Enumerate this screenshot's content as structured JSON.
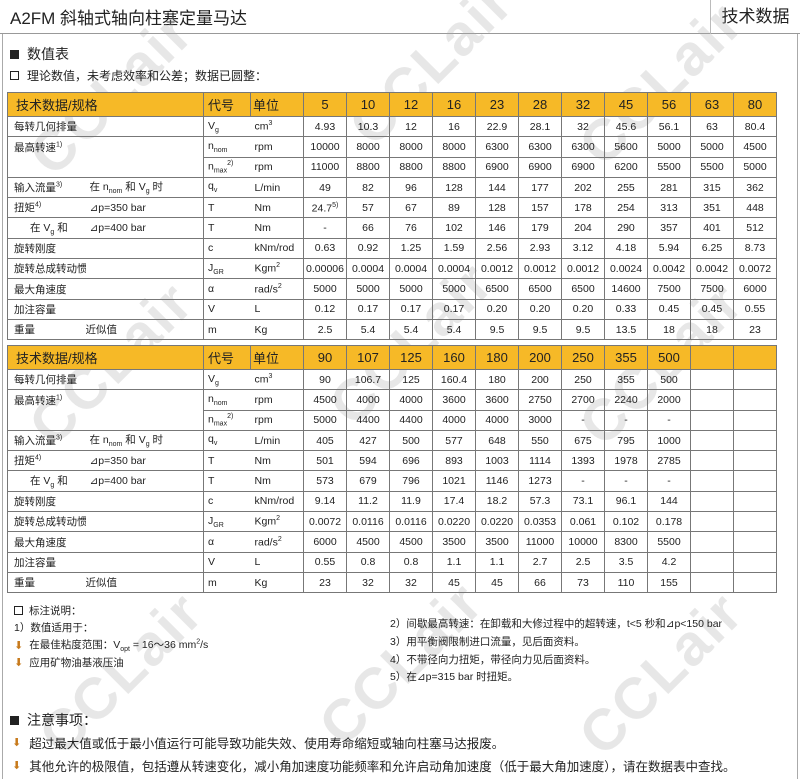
{
  "header": {
    "title": "A2FM 斜轴式轴向柱塞定量马达",
    "right": "技术数据"
  },
  "watermark": "CCLair",
  "section_title": "数值表",
  "subtitle": "理论数值，未考虑效率和公差；数据已圆整：",
  "colors": {
    "header_bg": "#f6b927",
    "arrow": "#c77a1c"
  },
  "table_headers": {
    "label": "技术数据/规格",
    "code": "代号",
    "unit": "单位"
  },
  "row_defs": [
    {
      "label": "每转几何排量",
      "code": "V",
      "code_sub": "g",
      "unit": "cm",
      "unit_sup": "3"
    },
    {
      "label": "最高转速",
      "label_sup": "1)",
      "code": "n",
      "code_sub": "nom",
      "unit": "rpm"
    },
    {
      "code": "n",
      "code_sub": "max",
      "code_sup": "2)",
      "unit": "rpm"
    },
    {
      "label": "输入流量",
      "label_sup": "3)",
      "sub_parts": [
        "在 n",
        "nom",
        " 和 V",
        "g",
        " 时"
      ],
      "code": "q",
      "code_sub": "v",
      "unit": "L/min"
    },
    {
      "label": "扭矩",
      "label_sup": "4)",
      "sublabel": "⊿p=350 bar",
      "code": "T",
      "unit": "Nm"
    },
    {
      "label_parts": [
        "在 V",
        "g",
        " 和"
      ],
      "sublabel": "⊿p=400 bar",
      "code": "T",
      "unit": "Nm"
    },
    {
      "label": "旋转刚度",
      "code": "c",
      "unit": "kNm/rod"
    },
    {
      "label": "旋转总成转动惯量",
      "code": "J",
      "code_sub": "GR",
      "unit": "Kgm",
      "unit_sup": "2"
    },
    {
      "label": "最大角速度",
      "code": "α",
      "unit": "rad/s",
      "unit_sup": "2"
    },
    {
      "label": "加注容量",
      "code": "V",
      "unit": "L"
    },
    {
      "label": "重量",
      "sublabel": "近似值",
      "code": "m",
      "unit": "Kg"
    }
  ],
  "tables": [
    {
      "sizes": [
        "5",
        "10",
        "12",
        "16",
        "23",
        "28",
        "32",
        "45",
        "56",
        "63",
        "80"
      ],
      "rows": [
        [
          "4.93",
          "10.3",
          "12",
          "16",
          "22.9",
          "28.1",
          "32",
          "45.6",
          "56.1",
          "63",
          "80.4"
        ],
        [
          "10000",
          "8000",
          "8000",
          "8000",
          "6300",
          "6300",
          "6300",
          "5600",
          "5000",
          "5000",
          "4500"
        ],
        [
          "11000",
          "8800",
          "8800",
          "8800",
          "6900",
          "6900",
          "6900",
          "6200",
          "5500",
          "5500",
          "5000"
        ],
        [
          "49",
          "82",
          "96",
          "128",
          "144",
          "177",
          "202",
          "255",
          "281",
          "315",
          "362"
        ],
        [
          "24.7",
          "57",
          "67",
          "89",
          "128",
          "157",
          "178",
          "254",
          "313",
          "351",
          "448"
        ],
        [
          "-",
          "66",
          "76",
          "102",
          "146",
          "179",
          "204",
          "290",
          "357",
          "401",
          "512"
        ],
        [
          "0.63",
          "0.92",
          "1.25",
          "1.59",
          "2.56",
          "2.93",
          "3.12",
          "4.18",
          "5.94",
          "6.25",
          "8.73"
        ],
        [
          "0.00006",
          "0.0004",
          "0.0004",
          "0.0004",
          "0.0012",
          "0.0012",
          "0.0012",
          "0.0024",
          "0.0042",
          "0.0042",
          "0.0072"
        ],
        [
          "5000",
          "5000",
          "5000",
          "5000",
          "6500",
          "6500",
          "6500",
          "14600",
          "7500",
          "7500",
          "6000"
        ],
        [
          "0.12",
          "0.17",
          "0.17",
          "0.17",
          "0.20",
          "0.20",
          "0.20",
          "0.33",
          "0.45",
          "0.45",
          "0.55"
        ],
        [
          "2.5",
          "5.4",
          "5.4",
          "5.4",
          "9.5",
          "9.5",
          "9.5",
          "13.5",
          "18",
          "18",
          "23"
        ]
      ],
      "value_note": {
        "row": 4,
        "col": 0,
        "text": "5)"
      }
    },
    {
      "sizes": [
        "90",
        "107",
        "125",
        "160",
        "180",
        "200",
        "250",
        "355",
        "500",
        "",
        ""
      ],
      "rows": [
        [
          "90",
          "106.7",
          "125",
          "160.4",
          "180",
          "200",
          "250",
          "355",
          "500",
          "",
          ""
        ],
        [
          "4500",
          "4000",
          "4000",
          "3600",
          "3600",
          "2750",
          "2700",
          "2240",
          "2000",
          "",
          ""
        ],
        [
          "5000",
          "4400",
          "4400",
          "4000",
          "4000",
          "3000",
          "-",
          "-",
          "-",
          "",
          ""
        ],
        [
          "405",
          "427",
          "500",
          "577",
          "648",
          "550",
          "675",
          "795",
          "1000",
          "",
          ""
        ],
        [
          "501",
          "594",
          "696",
          "893",
          "1003",
          "1114",
          "1393",
          "1978",
          "2785",
          "",
          ""
        ],
        [
          "573",
          "679",
          "796",
          "1021",
          "1146",
          "1273",
          "-",
          "-",
          "-",
          "",
          ""
        ],
        [
          "9.14",
          "11.2",
          "11.9",
          "17.4",
          "18.2",
          "57.3",
          "73.1",
          "96.1",
          "144",
          "",
          ""
        ],
        [
          "0.0072",
          "0.0116",
          "0.0116",
          "0.0220",
          "0.0220",
          "0.0353",
          "0.061",
          "0.102",
          "0.178",
          "",
          ""
        ],
        [
          "6000",
          "4500",
          "4500",
          "3500",
          "3500",
          "11000",
          "10000",
          "8300",
          "5500",
          "",
          ""
        ],
        [
          "0.55",
          "0.8",
          "0.8",
          "1.1",
          "1.1",
          "2.7",
          "2.5",
          "3.5",
          "4.2",
          "",
          ""
        ],
        [
          "23",
          "32",
          "32",
          "45",
          "45",
          "66",
          "73",
          "110",
          "155",
          "",
          ""
        ]
      ]
    }
  ],
  "footnotes": {
    "heading": "标注说明：",
    "n1": "1）数值适用于：",
    "n1a_pre": "在最佳粘度范围：V",
    "n1a_sub": "opt",
    "n1a_mid": " = 16～36 mm",
    "n1a_sup": "2",
    "n1a_post": "/s",
    "n1b": "应用矿物油基液压油",
    "n2": "2）间歇最高转速：在卸载和大修过程中的超转速，t<5 秒和⊿p<150 bar",
    "n3": "3）用平衡阀限制进口流量，见后面资料。",
    "n4": "4）不带径向力扭矩，带径向力见后面资料。",
    "n5": "5）在⊿p=315 bar 时扭矩。"
  },
  "notes": {
    "title": "注意事项：",
    "items": [
      "超过最大值或低于最小值运行可能导致功能失效、使用寿命缩短或轴向柱塞马达报废。",
      "其他允许的极限值，包括遵从转速变化，减小角加速度功能频率和允许启动角加速度（低于最大角加速度），请在数据表中查找。"
    ]
  }
}
